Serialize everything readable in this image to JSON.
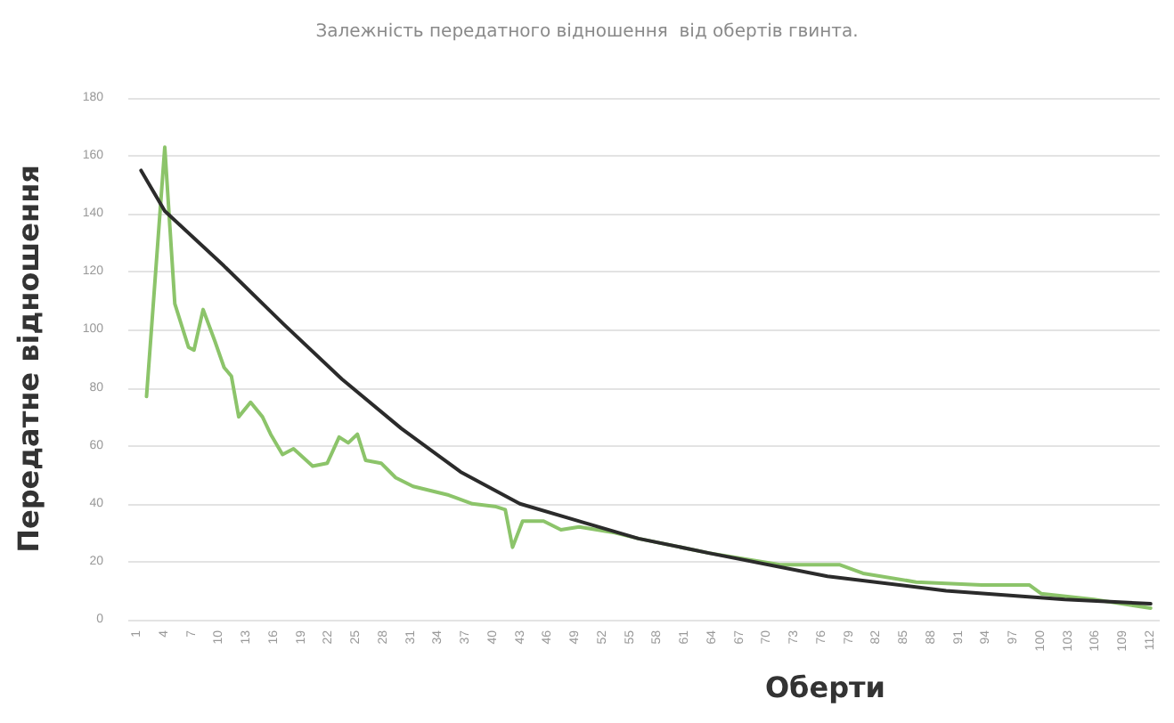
{
  "chart_data": {
    "type": "line",
    "title": "Залежність передатного відношення  від обертів гвинта.",
    "xlabel": "Оберти",
    "ylabel": "Передатне відношення",
    "xlim": [
      0,
      113
    ],
    "xticks": [
      1,
      4,
      7,
      10,
      13,
      16,
      19,
      22,
      25,
      28,
      31,
      34,
      37,
      40,
      43,
      46,
      49,
      52,
      55,
      58,
      61,
      64,
      67,
      70,
      73,
      76,
      79,
      82,
      85,
      88,
      91,
      94,
      97,
      100,
      103,
      106,
      109,
      112
    ],
    "ylim": [
      0,
      180
    ],
    "yticks": [
      0,
      20,
      40,
      60,
      80,
      100,
      120,
      140,
      160,
      180
    ],
    "grid": "y",
    "marker": "none",
    "line_style": "solid",
    "series": [
      {
        "color": "#8cc46a",
        "x": [
          2,
          4,
          5.1,
          6.6,
          7.2,
          8.2,
          9.5,
          10.5,
          11.3,
          12.1,
          13.4,
          14.7,
          15.6,
          16.9,
          18.1,
          20.2,
          21.8,
          23.1,
          24.1,
          25.1,
          26,
          27.7,
          29.3,
          31.2,
          35.1,
          37.7,
          40.3,
          41.3,
          42.1,
          43.2,
          45.5,
          47.4,
          49.4,
          53.3,
          55.9,
          63.6,
          71.4,
          77.9,
          80.5,
          86.3,
          93.5,
          98.7,
          100,
          105.8,
          112
        ],
        "values": [
          77,
          163,
          109,
          94,
          93,
          107,
          96,
          87,
          84,
          70,
          75,
          70,
          64,
          57,
          59,
          53,
          54,
          63,
          61,
          64,
          55,
          54,
          49,
          46,
          43,
          40,
          39,
          38,
          25,
          34,
          34,
          31,
          32,
          30,
          28,
          23,
          19,
          19,
          16,
          13,
          12,
          12,
          9,
          7,
          4
        ]
      },
      {
        "color": "#2b2b2b",
        "x": [
          1.4,
          4,
          10.5,
          17,
          23.4,
          29.9,
          36.4,
          42.9,
          49.4,
          55.9,
          63.6,
          76.6,
          89.6,
          102.6,
          112
        ],
        "values": [
          155,
          141,
          122,
          102,
          83,
          66,
          51,
          40,
          34,
          28,
          23,
          15,
          10,
          7,
          5.5
        ]
      }
    ]
  }
}
